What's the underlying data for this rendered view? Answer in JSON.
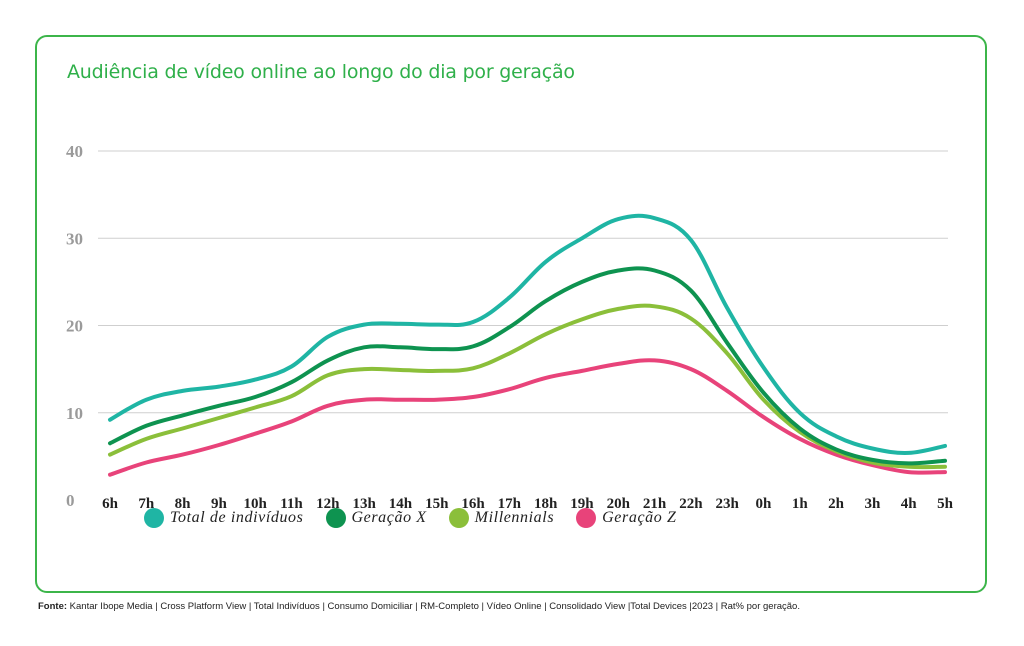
{
  "title": "Audiência de vídeo online ao longo do dia por geração",
  "source": {
    "label": "Fonte:",
    "text": "Kantar Ibope Media | Cross Platform View | Total Indivíduos | Consumo Domiciliar | RM-Completo | Vídeo Online | Consolidado View |Total Devices |2023 | Rat% por geração."
  },
  "chart_data": {
    "type": "line",
    "title": "Audiência de vídeo online ao longo do dia por geração",
    "xlabel": "",
    "ylabel": "",
    "ylim": [
      0,
      40
    ],
    "yticks": [
      "0",
      "10",
      "20",
      "30",
      "40"
    ],
    "grid": true,
    "legend_position": "bottom",
    "categories": [
      "6h",
      "7h",
      "8h",
      "9h",
      "10h",
      "11h",
      "12h",
      "13h",
      "14h",
      "15h",
      "16h",
      "17h",
      "18h",
      "19h",
      "20h",
      "21h",
      "22h",
      "23h",
      "0h",
      "1h",
      "2h",
      "3h",
      "4h",
      "5h"
    ],
    "series": [
      {
        "name": "Total de indivíduos",
        "color": "#1fb5a4",
        "values": [
          9.2,
          11.5,
          12.5,
          13.0,
          13.8,
          15.3,
          18.7,
          20.1,
          20.2,
          20.1,
          20.4,
          23.2,
          27.3,
          30.0,
          32.2,
          32.3,
          29.8,
          22.0,
          15.2,
          10.0,
          7.3,
          5.9,
          5.4,
          6.2
        ]
      },
      {
        "name": "Geração X",
        "color": "#0e9350",
        "values": [
          6.5,
          8.5,
          9.7,
          10.8,
          11.8,
          13.5,
          16.0,
          17.5,
          17.5,
          17.3,
          17.6,
          19.8,
          22.8,
          25.0,
          26.3,
          26.3,
          24.0,
          18.0,
          12.3,
          8.2,
          5.8,
          4.6,
          4.2,
          4.5
        ]
      },
      {
        "name": "Millennials",
        "color": "#8bbf3a",
        "values": [
          5.2,
          7.0,
          8.2,
          9.4,
          10.6,
          11.9,
          14.3,
          15.0,
          14.9,
          14.8,
          15.1,
          16.8,
          19.0,
          20.7,
          21.9,
          22.2,
          20.8,
          16.8,
          11.5,
          7.8,
          5.6,
          4.3,
          3.8,
          3.8
        ]
      },
      {
        "name": "Geração Z",
        "color": "#e8437a",
        "values": [
          2.9,
          4.3,
          5.2,
          6.3,
          7.6,
          9.0,
          10.8,
          11.5,
          11.5,
          11.5,
          11.8,
          12.7,
          14.0,
          14.8,
          15.6,
          16.0,
          15.0,
          12.5,
          9.5,
          7.0,
          5.2,
          4.0,
          3.2,
          3.2
        ]
      }
    ]
  }
}
